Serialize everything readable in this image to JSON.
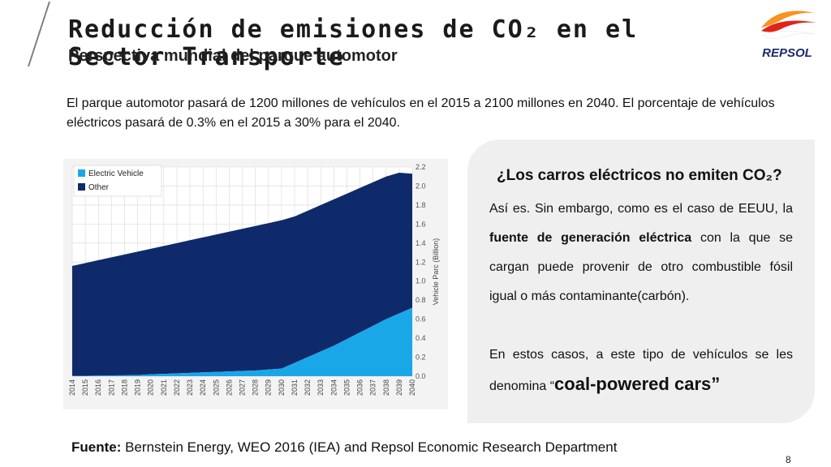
{
  "slide": {
    "title": "Reducción de emisiones de CO₂ en el Sector Transporte",
    "subtitle": "Perspectiva mundial del parque automotor",
    "intro": "El parque automotor pasará de 1200 millones de vehículos en el 2015 a 2100 millones en 2040. El porcentaje de vehículos eléctricos pasará de 0.3% en el 2015 a 30% para el 2040.",
    "logo_text": "REPSOL",
    "page_number": "8"
  },
  "callout": {
    "title": "¿Los carros eléctricos no emiten CO₂?",
    "p1_pre": "Así es. Sin embargo, como es el caso de EEUU, la ",
    "p1_bold": "fuente de generación eléctrica",
    "p1_post": " con la que se cargan puede provenir de otro combustible fósil igual o más contaminante(carbón).",
    "p2_pre": "En estos casos, a este tipo de vehículos se les denomina “",
    "p2_big": "coal-powered cars”"
  },
  "source": {
    "label": "Fuente:",
    "text": " Bernstein Energy, WEO 2016 (IEA) and Repsol Economic Research Department"
  },
  "colors": {
    "electric": "#1aa7e8",
    "other": "#0f2a6b",
    "logo_orange": "#f7931e",
    "logo_red": "#e2231a",
    "logo_navy": "#1b2a6b"
  },
  "chart_data": {
    "type": "area",
    "stacked": true,
    "ylabel": "Vehicle Parc (Billion)",
    "ylim": [
      0,
      2.2
    ],
    "yticks": [
      "0.0",
      "0.2",
      "0.4",
      "0.6",
      "0.8",
      "1.0",
      "1.2",
      "1.4",
      "1.6",
      "1.8",
      "2.0",
      "2.2"
    ],
    "x": [
      "2014",
      "2015",
      "2016",
      "2017",
      "2018",
      "2019",
      "2020",
      "2021",
      "2022",
      "2023",
      "2024",
      "2025",
      "2026",
      "2027",
      "2028",
      "2029",
      "2030",
      "2031",
      "2032",
      "2033",
      "2034",
      "2035",
      "2036",
      "2037",
      "2038",
      "2039",
      "2040"
    ],
    "legend_position": "top-left",
    "series": [
      {
        "name": "Electric Vehicle",
        "color": "#1aa7e8",
        "values": [
          0.003,
          0.004,
          0.006,
          0.008,
          0.01,
          0.012,
          0.02,
          0.025,
          0.03,
          0.035,
          0.04,
          0.045,
          0.05,
          0.055,
          0.06,
          0.07,
          0.08,
          0.14,
          0.2,
          0.26,
          0.32,
          0.39,
          0.46,
          0.53,
          0.6,
          0.66,
          0.72
        ]
      },
      {
        "name": "Other",
        "color": "#0f2a6b",
        "values": [
          1.157,
          1.186,
          1.214,
          1.242,
          1.27,
          1.298,
          1.32,
          1.345,
          1.37,
          1.395,
          1.42,
          1.445,
          1.47,
          1.495,
          1.52,
          1.54,
          1.56,
          1.54,
          1.54,
          1.54,
          1.54,
          1.53,
          1.52,
          1.51,
          1.5,
          1.48,
          1.41
        ]
      }
    ]
  }
}
